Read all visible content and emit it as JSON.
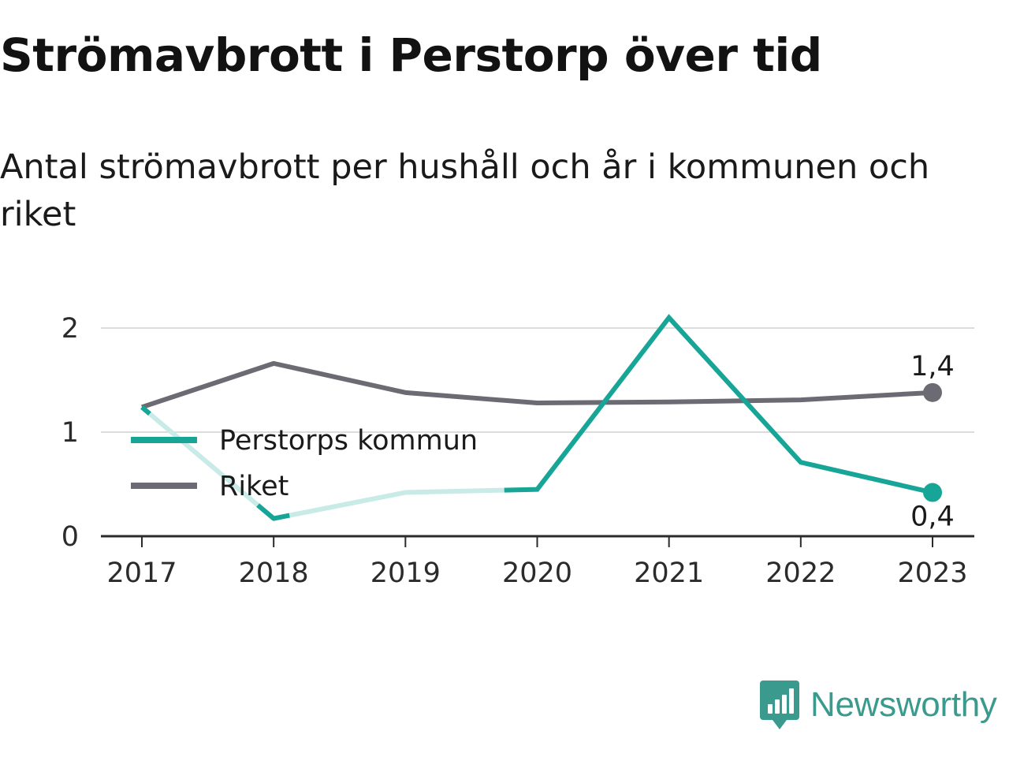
{
  "title": "Strömavbrott i Perstorp över tid",
  "subtitle": "Antal strömavbrott per hushåll och år i kommunen och riket",
  "brand": "Newsworthy",
  "colors": {
    "perstorp": "#16a596",
    "perstorp_faded": "#c8ebe7",
    "riket": "#6c6b73",
    "grid": "#dcdcdc",
    "axis": "#2b2b2b"
  },
  "chart_data": {
    "type": "line",
    "x": [
      "2017",
      "2018",
      "2019",
      "2020",
      "2021",
      "2022",
      "2023"
    ],
    "ylim": [
      0,
      2
    ],
    "yticks": [
      "0",
      "1",
      "2"
    ],
    "grid": true,
    "legend_position": "left-middle",
    "series": [
      {
        "name": "Perstorps kommun",
        "key": "perstorp",
        "values": [
          1.24,
          0.17,
          0.42,
          0.45,
          2.1,
          0.71,
          0.42
        ],
        "end_label": "0,4"
      },
      {
        "name": "Riket",
        "key": "riket",
        "values": [
          1.24,
          1.66,
          1.38,
          1.28,
          1.29,
          1.31,
          1.38
        ],
        "end_label": "1,4"
      }
    ]
  }
}
